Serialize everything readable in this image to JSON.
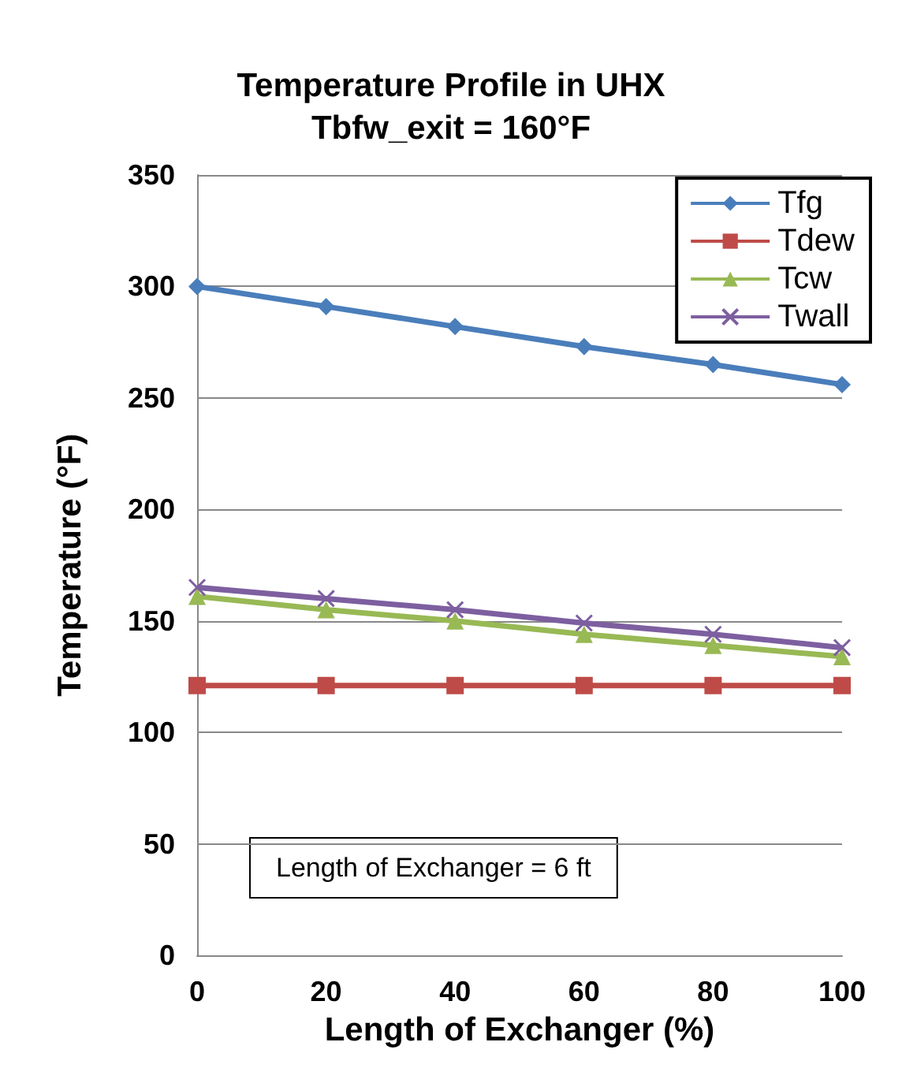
{
  "chart_data": {
    "type": "line",
    "title": "Temperature Profile in UHX\nTbfw_exit = 160°F",
    "xlabel": "Length of Exchanger (%)",
    "ylabel": "Temperature (°F)",
    "x": [
      0,
      20,
      40,
      60,
      80,
      100
    ],
    "series": [
      {
        "name": "Tfg",
        "color": "#4a7ebb",
        "marker": "diamond",
        "values": [
          300,
          291,
          282,
          273,
          265,
          256
        ]
      },
      {
        "name": "Tdew",
        "color": "#be4b48",
        "marker": "square",
        "values": [
          121,
          121,
          121,
          121,
          121,
          121
        ]
      },
      {
        "name": "Tcw",
        "color": "#98b954",
        "marker": "triangle",
        "values": [
          161,
          155,
          150,
          144,
          139,
          134
        ]
      },
      {
        "name": "Twall",
        "color": "#7d5fa0",
        "marker": "cross",
        "values": [
          165,
          160,
          155,
          149,
          144,
          138
        ]
      }
    ],
    "xlim": [
      0,
      100
    ],
    "xticks": [
      0,
      20,
      40,
      60,
      80,
      100
    ],
    "ylim": [
      0,
      350
    ],
    "yticks": [
      0,
      50,
      100,
      150,
      200,
      250,
      300,
      350
    ],
    "grid": "y",
    "legend": "top right",
    "annotations": [
      "Length of Exchanger = 6 ft"
    ]
  }
}
